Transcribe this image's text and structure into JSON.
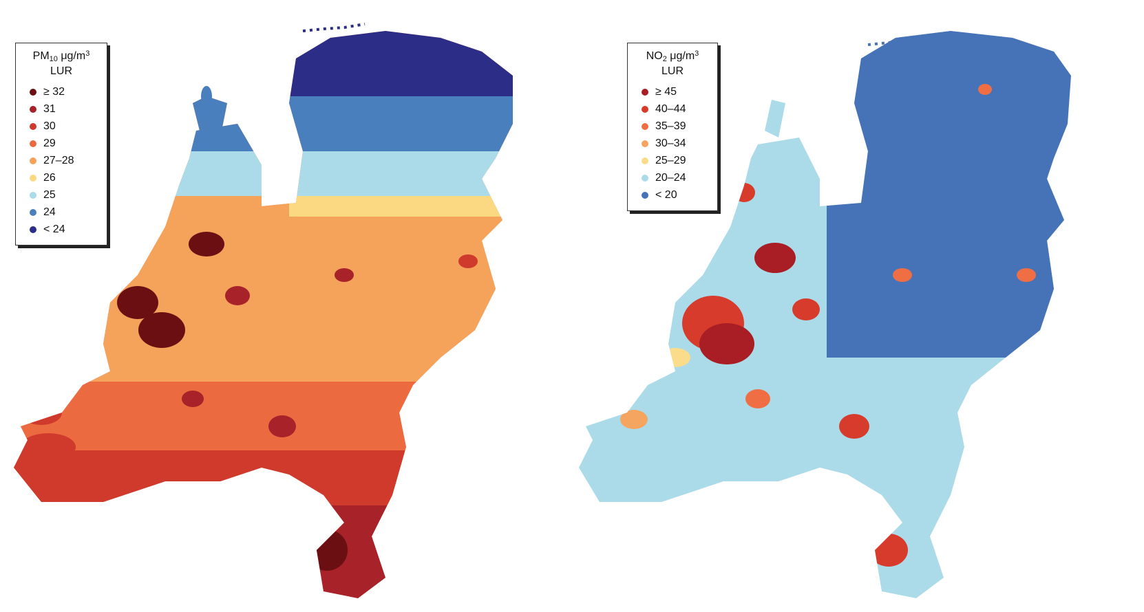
{
  "panels": [
    {
      "id": "pm10",
      "legend": {
        "title_main": "PM",
        "title_sub": "10",
        "title_unit": " μg/m",
        "title_sup": "3",
        "title_line2": "LUR",
        "items": [
          {
            "label": "≥ 32",
            "color": "#6b0f12"
          },
          {
            "label": "31",
            "color": "#a8222a"
          },
          {
            "label": "30",
            "color": "#cf3a2c"
          },
          {
            "label": "29",
            "color": "#ec6a3f"
          },
          {
            "label": "27–28",
            "color": "#f5a25b"
          },
          {
            "label": "26",
            "color": "#fbd983"
          },
          {
            "label": "25",
            "color": "#abdbe8"
          },
          {
            "label": "24",
            "color": "#4a7fbe"
          },
          {
            "label": "< 24",
            "color": "#2b2d86"
          }
        ]
      }
    },
    {
      "id": "no2",
      "legend": {
        "title_main": "NO",
        "title_sub": "2",
        "title_unit": " μg/m",
        "title_sup": "3",
        "title_line2": "LUR",
        "items": [
          {
            "label": "≥ 45",
            "color": "#a81e24"
          },
          {
            "label": "40–44",
            "color": "#d63b2b"
          },
          {
            "label": "35–39",
            "color": "#ef6e44"
          },
          {
            "label": "30–34",
            "color": "#f5a55f"
          },
          {
            "label": "25–29",
            "color": "#fbdc8b"
          },
          {
            "label": "20–24",
            "color": "#abdbe8"
          },
          {
            "label": "< 20",
            "color": "#4673b8"
          }
        ]
      }
    }
  ]
}
